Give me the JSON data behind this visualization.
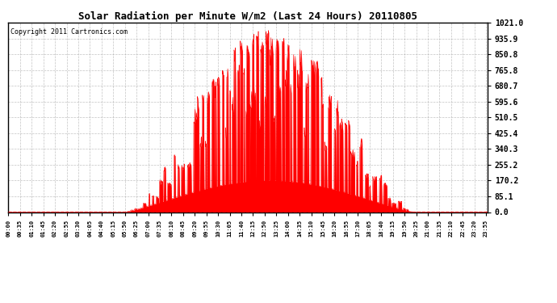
{
  "title": "Solar Radiation per Minute W/m2 (Last 24 Hours) 20110805",
  "copyright_text": "Copyright 2011 Cartronics.com",
  "fill_color": "#ff0000",
  "line_color": "#ff0000",
  "dashed_line_color": "#ff0000",
  "grid_color": "#aaaaaa",
  "background_color": "#ffffff",
  "plot_bg_color": "#ffffff",
  "ylim": [
    0.0,
    1021.0
  ],
  "yticks": [
    0.0,
    85.1,
    170.2,
    255.2,
    340.3,
    425.4,
    510.5,
    595.6,
    680.7,
    765.8,
    850.8,
    935.9,
    1021.0
  ],
  "num_minutes": 1440,
  "xtick_step": 35,
  "title_fontsize": 9,
  "copyright_fontsize": 6,
  "ytick_fontsize": 7,
  "xtick_fontsize": 5
}
